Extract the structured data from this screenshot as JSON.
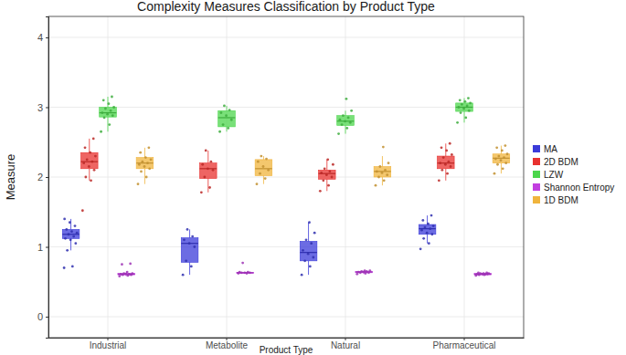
{
  "chart_data": {
    "type": "box",
    "title": "Complexity Measures Classification by Product Type",
    "x_label": "Product Type",
    "y_label": "Measure",
    "categories": [
      "Industrial",
      "Metabolite",
      "Natural",
      "Pharmaceutical"
    ],
    "ylim": [
      -0.3,
      4.3
    ],
    "yticks": [
      0,
      1,
      2,
      3,
      4
    ],
    "grid": true,
    "legend": "right",
    "series": [
      {
        "name": "MA",
        "color": "#3b3bd9",
        "values": [
          [
            0.7,
            0.72,
            0.95,
            1.05,
            1.1,
            1.12,
            1.15,
            1.18,
            1.2,
            1.22,
            1.25,
            1.3,
            1.35,
            1.4
          ],
          [
            0.6,
            0.72,
            0.8,
            1.0,
            1.05,
            1.1,
            1.15,
            1.25
          ],
          [
            0.6,
            0.72,
            0.8,
            0.85,
            0.9,
            0.95,
            1.05,
            1.1,
            1.2,
            1.35
          ],
          [
            0.97,
            1.05,
            1.12,
            1.18,
            1.2,
            1.24,
            1.26,
            1.28,
            1.3,
            1.33,
            1.38,
            1.45
          ]
        ],
        "boxes": [
          {
            "min": 0.95,
            "q1": 1.12,
            "median": 1.18,
            "q3": 1.25,
            "max": 1.4
          },
          {
            "min": 0.6,
            "q1": 0.78,
            "median": 1.05,
            "q3": 1.13,
            "max": 1.25
          },
          {
            "min": 0.6,
            "q1": 0.8,
            "median": 0.92,
            "q3": 1.08,
            "max": 1.35
          },
          {
            "min": 1.05,
            "q1": 1.18,
            "median": 1.26,
            "q3": 1.32,
            "max": 1.45
          }
        ]
      },
      {
        "name": "2D BDM",
        "color": "#e8312f",
        "values": [
          [
            1.52,
            1.95,
            2.0,
            2.1,
            2.15,
            2.2,
            2.22,
            2.25,
            2.3,
            2.35,
            2.42,
            2.55
          ],
          [
            1.78,
            1.85,
            2.0,
            2.1,
            2.12,
            2.18,
            2.22,
            2.38
          ],
          [
            1.8,
            1.88,
            1.95,
            2.0,
            2.03,
            2.06,
            2.08,
            2.12,
            2.18,
            2.25
          ],
          [
            1.95,
            2.05,
            2.1,
            2.15,
            2.18,
            2.2,
            2.22,
            2.28,
            2.32,
            2.38,
            2.42,
            2.48
          ]
        ],
        "boxes": [
          {
            "min": 1.95,
            "q1": 2.12,
            "median": 2.22,
            "q3": 2.35,
            "max": 2.55
          },
          {
            "min": 1.78,
            "q1": 1.98,
            "median": 2.12,
            "q3": 2.2,
            "max": 2.38
          },
          {
            "min": 1.8,
            "q1": 1.97,
            "median": 2.05,
            "q3": 2.1,
            "max": 2.25
          },
          {
            "min": 1.95,
            "q1": 2.12,
            "median": 2.2,
            "q3": 2.3,
            "max": 2.48
          }
        ]
      },
      {
        "name": "LZW",
        "color": "#4cd64c",
        "values": [
          [
            2.65,
            2.75,
            2.85,
            2.88,
            2.9,
            2.92,
            2.95,
            2.98,
            3.0,
            3.05,
            3.1,
            3.15
          ],
          [
            2.65,
            2.7,
            2.75,
            2.82,
            2.88,
            2.92,
            2.96,
            3.02
          ],
          [
            2.62,
            2.7,
            2.75,
            2.78,
            2.8,
            2.82,
            2.85,
            2.88,
            2.95,
            3.12
          ],
          [
            2.78,
            2.85,
            2.92,
            2.95,
            2.98,
            3.0,
            3.02,
            3.04,
            3.06,
            3.08,
            3.1,
            3.13
          ]
        ],
        "boxes": [
          {
            "min": 2.65,
            "q1": 2.86,
            "median": 2.92,
            "q3": 3.0,
            "max": 3.15
          },
          {
            "min": 2.65,
            "q1": 2.72,
            "median": 2.85,
            "q3": 2.95,
            "max": 3.02
          },
          {
            "min": 2.62,
            "q1": 2.74,
            "median": 2.8,
            "q3": 2.88,
            "max": 2.95
          },
          {
            "min": 2.78,
            "q1": 2.94,
            "median": 3.0,
            "q3": 3.06,
            "max": 3.13
          }
        ]
      },
      {
        "name": "Shannon Entropy",
        "color": "#c23ee0",
        "values": [
          [
            0.58,
            0.59,
            0.6,
            0.6,
            0.61,
            0.61,
            0.61,
            0.62,
            0.62,
            0.64,
            0.75,
            0.76
          ],
          [
            0.62,
            0.62,
            0.63,
            0.63,
            0.63,
            0.64,
            0.64,
            0.77
          ],
          [
            0.61,
            0.62,
            0.63,
            0.63,
            0.64,
            0.64,
            0.65,
            0.65,
            0.66,
            0.66
          ],
          [
            0.59,
            0.6,
            0.6,
            0.61,
            0.61,
            0.61,
            0.61,
            0.62,
            0.62,
            0.62,
            0.63,
            0.63
          ]
        ],
        "boxes": [
          {
            "min": 0.58,
            "q1": 0.6,
            "median": 0.61,
            "q3": 0.62,
            "max": 0.64
          },
          {
            "min": 0.62,
            "q1": 0.62,
            "median": 0.63,
            "q3": 0.635,
            "max": 0.64
          },
          {
            "min": 0.61,
            "q1": 0.63,
            "median": 0.64,
            "q3": 0.65,
            "max": 0.66
          },
          {
            "min": 0.59,
            "q1": 0.6,
            "median": 0.61,
            "q3": 0.62,
            "max": 0.63
          }
        ]
      },
      {
        "name": "1D BDM",
        "color": "#f0b43c",
        "values": [
          [
            1.9,
            2.0,
            2.08,
            2.12,
            2.15,
            2.18,
            2.2,
            2.22,
            2.25,
            2.28,
            2.35,
            2.42
          ],
          [
            1.9,
            1.98,
            2.05,
            2.1,
            2.15,
            2.22,
            2.26,
            2.3
          ],
          [
            1.88,
            1.95,
            2.0,
            2.03,
            2.06,
            2.08,
            2.1,
            2.15,
            2.2,
            2.43
          ],
          [
            2.05,
            2.12,
            2.18,
            2.2,
            2.24,
            2.26,
            2.28,
            2.3,
            2.33,
            2.38,
            2.42,
            2.45
          ]
        ],
        "boxes": [
          {
            "min": 1.9,
            "q1": 2.12,
            "median": 2.2,
            "q3": 2.28,
            "max": 2.42
          },
          {
            "min": 1.9,
            "q1": 2.02,
            "median": 2.12,
            "q3": 2.25,
            "max": 2.3
          },
          {
            "min": 1.88,
            "q1": 2.0,
            "median": 2.08,
            "q3": 2.15,
            "max": 2.3
          },
          {
            "min": 2.05,
            "q1": 2.2,
            "median": 2.27,
            "q3": 2.33,
            "max": 2.45
          }
        ]
      }
    ]
  }
}
